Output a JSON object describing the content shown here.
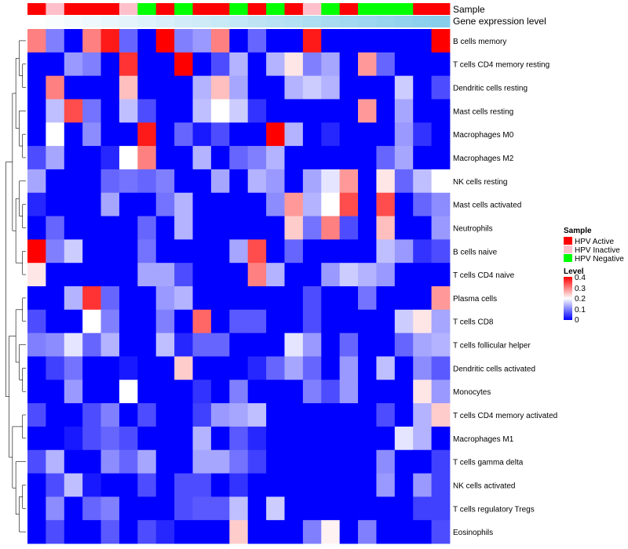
{
  "chart_data": {
    "type": "heatmap",
    "annotation_track_labels": [
      "Sample",
      "Gene expression level"
    ],
    "sample_groups": [
      "HPV Active",
      "HPV Inactive",
      "HPV Active",
      "HPV Active",
      "HPV Active",
      "HPV Inactive",
      "HPV Negative",
      "HPV Active",
      "HPV Negative",
      "HPV Active",
      "HPV Active",
      "HPV Negative",
      "HPV Active",
      "HPV Negative",
      "HPV Active",
      "HPV Inactive",
      "HPV Negative",
      "HPV Active",
      "HPV Negative",
      "HPV Negative",
      "HPV Negative",
      "HPV Active",
      "HPV Active"
    ],
    "sample_colors": {
      "HPV Active": "#ff0000",
      "HPV Inactive": "#ffc0cb",
      "HPV Negative": "#00ff00"
    },
    "expression_levels": [
      0.02,
      0.04,
      0.06,
      0.08,
      0.1,
      0.12,
      0.14,
      0.16,
      0.18,
      0.2,
      0.22,
      0.24,
      0.26,
      0.28,
      0.3,
      0.32,
      0.34,
      0.36,
      0.38,
      0.4,
      0.42,
      0.44,
      0.46
    ],
    "expression_color_range": [
      "#ffffff",
      "#87ceeb"
    ],
    "rows": [
      "B cells memory",
      "T cells CD4 memory resting",
      "Dendritic cells resting",
      "Mast cells resting",
      "Macrophages M0",
      "Macrophages M2",
      "NK cells resting",
      "Mast cells activated",
      "Neutrophils",
      "B cells naive",
      "T cells CD4 naive",
      "Plasma cells",
      "T cells CD8",
      "T cells follicular helper",
      "Dendritic cells activated",
      "Monocytes",
      "T cells CD4 memory activated",
      "Macrophages M1",
      "T cells gamma delta",
      "NK cells activated",
      "T cells regulatory  Tregs",
      "Eosinophils"
    ],
    "values": [
      [
        0.3,
        0.1,
        0,
        0.3,
        0.38,
        0.08,
        0,
        0.4,
        0.1,
        0.12,
        0.3,
        0,
        0.08,
        0,
        0,
        0.38,
        0,
        0,
        0,
        0,
        0,
        0,
        0.4
      ],
      [
        0,
        0,
        0.12,
        0.1,
        0,
        0.36,
        0,
        0,
        0.4,
        0,
        0.06,
        0.14,
        0,
        0.14,
        0.22,
        0.1,
        0.13,
        0,
        0.28,
        0.08,
        0,
        0,
        0
      ],
      [
        0,
        0.3,
        0,
        0,
        0,
        0.25,
        0,
        0,
        0,
        0.14,
        0.25,
        0.13,
        0,
        0,
        0.14,
        0.16,
        0.14,
        0,
        0,
        0,
        0.16,
        0,
        0.06
      ],
      [
        0,
        0.15,
        0.34,
        0.09,
        0,
        0.15,
        0.06,
        0,
        0,
        0.15,
        0.2,
        0.16,
        0.04,
        0,
        0,
        0,
        0,
        0,
        0.28,
        0,
        0.13,
        0,
        0
      ],
      [
        0,
        0.2,
        0,
        0.11,
        0,
        0,
        0.38,
        0,
        0.08,
        0.02,
        0.06,
        0,
        0,
        0.4,
        0.14,
        0,
        0.03,
        0,
        0,
        0,
        0.12,
        0.04,
        0
      ],
      [
        0.06,
        0.13,
        0,
        0,
        0.03,
        0.2,
        0.3,
        0,
        0,
        0.14,
        0,
        0.08,
        0.1,
        0.14,
        0,
        0,
        0,
        0,
        0,
        0.08,
        0.13,
        0,
        0
      ],
      [
        0.13,
        0,
        0,
        0,
        0.08,
        0.09,
        0.08,
        0.1,
        0,
        0,
        0.13,
        0,
        0.14,
        0.12,
        0,
        0.13,
        0.18,
        0.28,
        0,
        0.22,
        0.08,
        0.15,
        0.2
      ],
      [
        0.03,
        0,
        0,
        0,
        0.13,
        0,
        0,
        0.09,
        0.14,
        0,
        0,
        0,
        0,
        0.11,
        0.28,
        0.14,
        0.2,
        0.34,
        0,
        0.34,
        0,
        0.08,
        0.11
      ],
      [
        0,
        0.08,
        0,
        0,
        0,
        0,
        0.08,
        0,
        0.14,
        0,
        0,
        0,
        0,
        0,
        0.24,
        0.09,
        0.3,
        0.06,
        0,
        0.25,
        0,
        0,
        0.12
      ],
      [
        0.4,
        0.1,
        0.16,
        0,
        0,
        0,
        0.09,
        0,
        0,
        0,
        0,
        0.13,
        0.34,
        0,
        0.08,
        0,
        0,
        0,
        0,
        0.15,
        0.12,
        0.04,
        0.06
      ],
      [
        0.22,
        0,
        0,
        0,
        0,
        0,
        0.13,
        0.13,
        0.06,
        0,
        0,
        0,
        0.3,
        0.14,
        0,
        0,
        0.12,
        0.16,
        0.14,
        0.12,
        0,
        0,
        0
      ],
      [
        0,
        0,
        0.14,
        0.36,
        0.08,
        0,
        0,
        0.12,
        0.14,
        0,
        0,
        0,
        0,
        0,
        0,
        0.06,
        0,
        0,
        0.09,
        0,
        0,
        0,
        0.28
      ],
      [
        0.06,
        0,
        0,
        0.2,
        0.1,
        0,
        0,
        0.1,
        0,
        0.32,
        0,
        0.07,
        0.07,
        0,
        0,
        0.06,
        0,
        0,
        0,
        0,
        0.16,
        0.22,
        0.13
      ],
      [
        0.1,
        0.11,
        0.18,
        0.08,
        0.14,
        0,
        0,
        0.15,
        0.03,
        0.08,
        0.08,
        0,
        0,
        0,
        0.18,
        0.12,
        0,
        0.08,
        0,
        0,
        0.08,
        0.13,
        0.14
      ],
      [
        0,
        0.05,
        0.09,
        0,
        0,
        0.02,
        0,
        0,
        0.24,
        0,
        0,
        0,
        0.03,
        0.08,
        0.13,
        0.08,
        0,
        0.12,
        0,
        0.15,
        0,
        0.11,
        0.07
      ],
      [
        0,
        0,
        0.12,
        0,
        0,
        0.2,
        0,
        0,
        0,
        0.04,
        0,
        0.1,
        0,
        0,
        0,
        0.1,
        0.06,
        0.12,
        0,
        0,
        0,
        0.22,
        0.12
      ],
      [
        0.06,
        0,
        0,
        0.06,
        0.1,
        0,
        0.06,
        0,
        0,
        0.05,
        0.12,
        0.13,
        0.15,
        0,
        0,
        0,
        0,
        0,
        0,
        0.06,
        0,
        0.14,
        0.24
      ],
      [
        0,
        0,
        0.02,
        0.06,
        0.08,
        0.06,
        0,
        0,
        0,
        0.14,
        0,
        0.07,
        0.03,
        0,
        0,
        0,
        0,
        0,
        0,
        0,
        0.18,
        0.14,
        0
      ],
      [
        0.06,
        0.14,
        0,
        0,
        0.11,
        0.08,
        0.13,
        0,
        0,
        0.13,
        0.13,
        0.09,
        0.05,
        0,
        0,
        0,
        0,
        0,
        0,
        0.11,
        0,
        0,
        0.05
      ],
      [
        0,
        0.06,
        0.15,
        0.02,
        0,
        0,
        0.06,
        0,
        0.06,
        0.06,
        0,
        0.04,
        0,
        0,
        0,
        0,
        0,
        0,
        0,
        0.12,
        0,
        0.12,
        0.05
      ],
      [
        0,
        0.11,
        0,
        0.08,
        0.1,
        0,
        0,
        0,
        0.06,
        0.07,
        0.07,
        0.15,
        0,
        0.16,
        0,
        0,
        0,
        0,
        0,
        0,
        0,
        0.05,
        0.05
      ],
      [
        0,
        0.06,
        0,
        0,
        0.07,
        0,
        0.06,
        0.03,
        0,
        0,
        0,
        0.24,
        0,
        0,
        0,
        0.1,
        0.21,
        0,
        0.1,
        0,
        0,
        0,
        0.06
      ]
    ],
    "legends": {
      "sample": {
        "title": "Sample",
        "entries": [
          "HPV Active",
          "HPV Inactive",
          "HPV Negative"
        ]
      },
      "level": {
        "title": "Level",
        "ticks": [
          "0.4",
          "0.3",
          "0.2",
          "0.1",
          "0"
        ],
        "range": [
          0,
          0.4
        ],
        "colors": [
          "#0000ff",
          "#ffffff",
          "#ff0000"
        ]
      }
    }
  }
}
